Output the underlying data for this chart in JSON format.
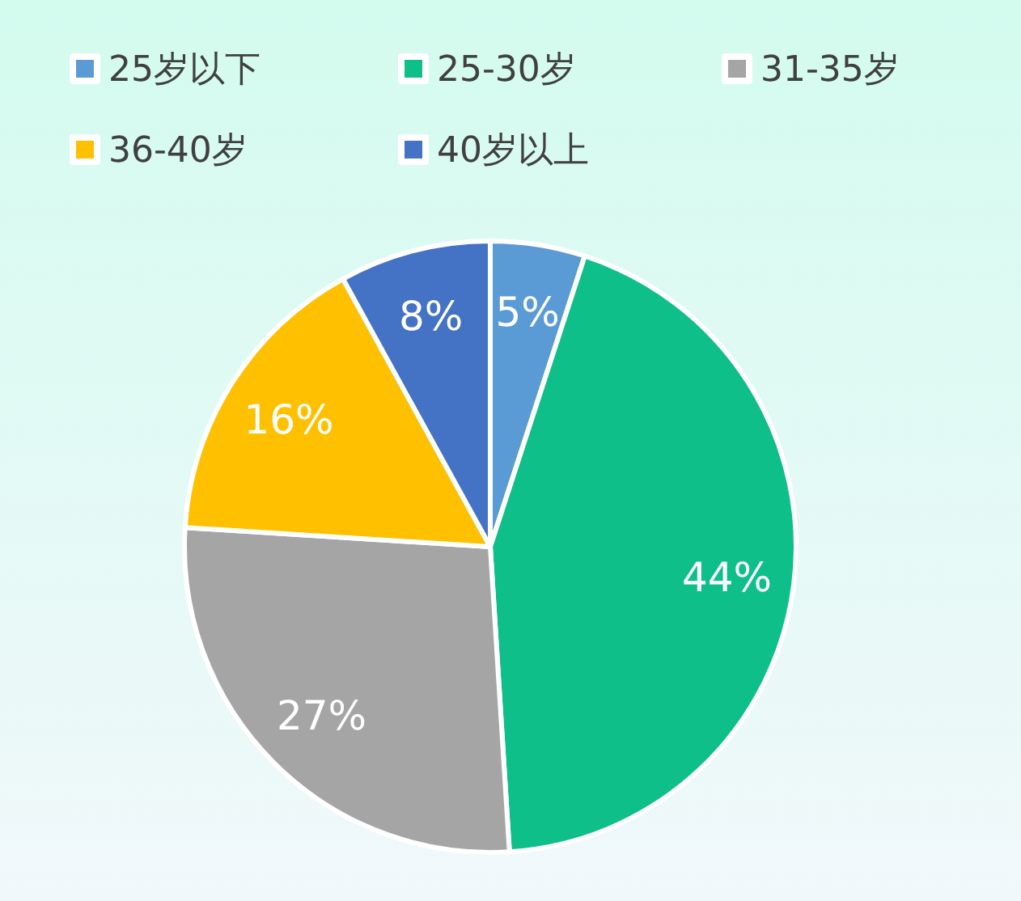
{
  "chart_data": {
    "type": "pie",
    "categories": [
      "25岁以下",
      "25-30岁",
      "31-35岁",
      "36-40岁",
      "40岁以上"
    ],
    "values": [
      5,
      44,
      27,
      16,
      8
    ],
    "colors": [
      "#5b9bd5",
      "#0ebf8a",
      "#a5a5a5",
      "#ffc000",
      "#4472c4"
    ],
    "value_labels": [
      "5%",
      "44%",
      "27%",
      "16%",
      "8%"
    ],
    "legend": "top"
  }
}
